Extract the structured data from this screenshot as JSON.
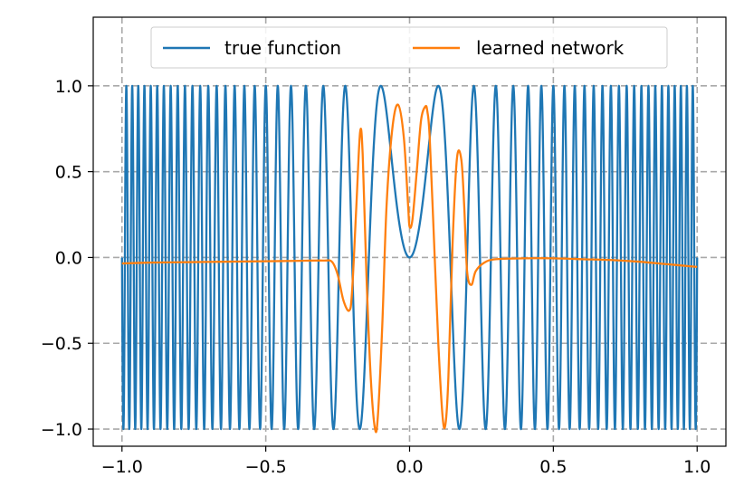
{
  "chart_data": {
    "type": "line",
    "title": "",
    "xlabel": "",
    "ylabel": "",
    "xlim": [
      -1.1,
      1.1
    ],
    "ylim": [
      -1.1,
      1.4
    ],
    "xticks": [
      -1.0,
      -0.5,
      0.0,
      0.5,
      1.0
    ],
    "xtick_labels": [
      "−1.0",
      "−0.5",
      "0.0",
      "0.5",
      "1.0"
    ],
    "yticks": [
      -1.0,
      -0.5,
      0.0,
      0.5,
      1.0
    ],
    "ytick_labels": [
      "−1.0",
      "−0.5",
      "0.0",
      "0.5",
      "1.0"
    ],
    "grid": true,
    "grid_style": "dashed",
    "legend_position": "top-center",
    "series": [
      {
        "name": "true function",
        "color": "#1f77b4",
        "function": "sin(50*pi*x^2)",
        "x_range": [
          -1.0,
          1.0
        ]
      },
      {
        "name": "learned network",
        "color": "#ff7f0e",
        "x": [
          -1.0,
          -0.9,
          -0.8,
          -0.7,
          -0.6,
          -0.5,
          -0.4,
          -0.3,
          -0.27,
          -0.25,
          -0.23,
          -0.21,
          -0.2,
          -0.185,
          -0.172,
          -0.163,
          -0.15,
          -0.135,
          -0.12,
          -0.11,
          -0.095,
          -0.08,
          -0.06,
          -0.04,
          -0.02,
          -0.005,
          0.0,
          0.01,
          0.025,
          0.04,
          0.055,
          0.062,
          0.07,
          0.085,
          0.1,
          0.115,
          0.125,
          0.135,
          0.15,
          0.165,
          0.18,
          0.19,
          0.2,
          0.215,
          0.23,
          0.26,
          0.3,
          0.4,
          0.5,
          0.6,
          0.7,
          0.8,
          0.9,
          1.0
        ],
        "y": [
          -0.035,
          -0.03,
          -0.028,
          -0.026,
          -0.024,
          -0.022,
          -0.02,
          -0.018,
          -0.025,
          -0.1,
          -0.25,
          -0.31,
          -0.2,
          0.3,
          0.73,
          0.6,
          -0.1,
          -0.7,
          -1.0,
          -0.92,
          -0.4,
          0.3,
          0.75,
          0.89,
          0.7,
          0.3,
          0.18,
          0.22,
          0.5,
          0.8,
          0.88,
          0.85,
          0.7,
          0.1,
          -0.5,
          -0.93,
          -0.97,
          -0.7,
          0.1,
          0.58,
          0.57,
          0.3,
          -0.08,
          -0.16,
          -0.08,
          -0.03,
          -0.01,
          -0.005,
          -0.005,
          -0.01,
          -0.015,
          -0.025,
          -0.04,
          -0.055
        ]
      }
    ]
  }
}
